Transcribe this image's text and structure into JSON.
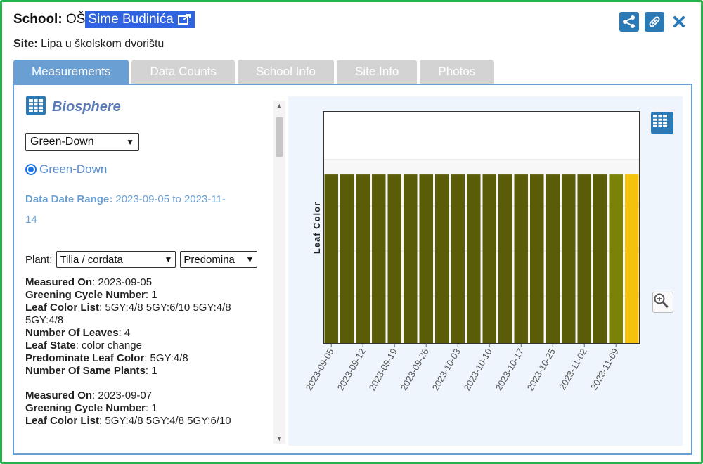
{
  "header": {
    "school_label": "School:",
    "school_prefix": "OŠ",
    "school_name": "Sime Budinića",
    "site_label": "Site:",
    "site_name": "Lipa u školskom dvorištu"
  },
  "top_icons": [
    "share-icon",
    "link-icon",
    "close-icon"
  ],
  "tabs": [
    {
      "label": "Measurements",
      "active": true
    },
    {
      "label": "Data Counts",
      "active": false
    },
    {
      "label": "School Info",
      "active": false
    },
    {
      "label": "Site Info",
      "active": false
    },
    {
      "label": "Photos",
      "active": false
    }
  ],
  "left": {
    "title": "Biosphere",
    "protocol_select": "Green-Down",
    "radio_label": "Green-Down",
    "range_label": "Data Date Range:",
    "range_value_1": "2023-09-05 to 2023-11-",
    "range_value_2": "14",
    "plant_label": "Plant:",
    "plant_select": "Tilia / cordata",
    "color_select": "Predomina",
    "records": [
      {
        "measured_on_label": "Measured On",
        "measured_on": ": 2023-09-05",
        "cycle_label": "Greening Cycle Number",
        "cycle": ": 1",
        "color_list_label": "Leaf Color List",
        "color_list": ": 5GY:4/8 5GY:6/10 5GY:4/8",
        "color_list_cont": "5GY:4/8",
        "leaves_label": "Number Of Leaves",
        "leaves": ": 4",
        "state_label": "Leaf State",
        "state": ": color change",
        "predom_label": "Predominate Leaf Color",
        "predom": ": 5GY:4/8",
        "same_label": "Number Of Same Plants",
        "same": ": 1"
      },
      {
        "measured_on_label": "Measured On",
        "measured_on": ": 2023-09-07",
        "cycle_label": "Greening Cycle Number",
        "cycle": ": 1",
        "color_list_label": "Leaf Color List",
        "color_list": ": 5GY:4/8 5GY:4/8 5GY:6/10"
      }
    ]
  },
  "chart_data": {
    "type": "bar",
    "ylabel": "Leaf Color",
    "x_tick_labels": [
      "2023-09-05",
      "2023-09-12",
      "2023-09-19",
      "2023-09-26",
      "2023-10-03",
      "2023-10-10",
      "2023-10-17",
      "2023-10-25",
      "2023-11-02",
      "2023-11-09"
    ],
    "bar_count": 20,
    "value_fraction": 0.73,
    "bar_colors": [
      "#5a5c08",
      "#5a5c08",
      "#5a5c08",
      "#5a5c08",
      "#5a5c08",
      "#5a5c08",
      "#5a5c08",
      "#5a5c08",
      "#5a5c08",
      "#5a5c08",
      "#5a5c08",
      "#5a5c08",
      "#5a5c08",
      "#5a5c08",
      "#5a5c08",
      "#5a5c08",
      "#5a5c08",
      "#5a5c08",
      "#7a8208",
      "#f4c20d"
    ],
    "gridlines": true
  }
}
